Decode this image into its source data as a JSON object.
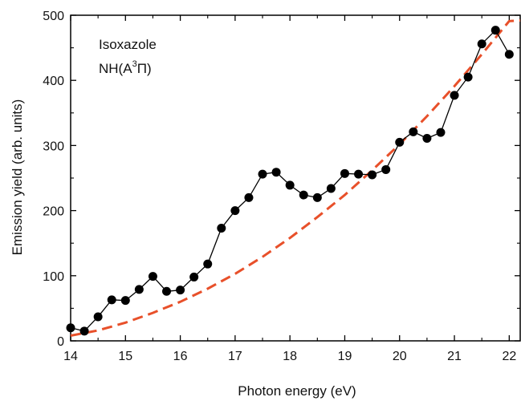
{
  "chart_data": {
    "type": "line",
    "xlabel": "Photon energy (eV)",
    "ylabel": "Emission yield (arb. units)",
    "xlim": [
      14,
      22.2
    ],
    "ylim": [
      0,
      500
    ],
    "xticks": [
      "14",
      "15",
      "16",
      "17",
      "18",
      "19",
      "20",
      "21",
      "22"
    ],
    "yticks": [
      "0",
      "100",
      "200",
      "300",
      "400",
      "500"
    ],
    "grid": false,
    "annotations": {
      "molecule": "Isoxazole",
      "state_prefix": "NH(A",
      "state_superscript": "3",
      "state_suffix": "Π)"
    },
    "series": [
      {
        "type": "line-markers",
        "color": "#000000",
        "x": [
          14.0,
          14.25,
          14.5,
          14.75,
          15.0,
          15.25,
          15.5,
          15.75,
          16.0,
          16.25,
          16.5,
          16.75,
          17.0,
          17.25,
          17.5,
          17.75,
          18.0,
          18.25,
          18.5,
          18.75,
          19.0,
          19.25,
          19.5,
          19.75,
          20.0,
          20.25,
          20.5,
          20.75,
          21.0,
          21.25,
          21.5,
          21.75,
          22.0
        ],
        "values": [
          20,
          15,
          37,
          63,
          62,
          79,
          99,
          76,
          78,
          98,
          118,
          173,
          200,
          220,
          256,
          259,
          239,
          224,
          220,
          234,
          257,
          256,
          255,
          263,
          305,
          321,
          311,
          320,
          377,
          405,
          456,
          477,
          440
        ]
      },
      {
        "type": "dashed-fit",
        "color": "#e8502a",
        "x": [
          14.0,
          14.5,
          15.0,
          15.5,
          16.0,
          16.5,
          17.0,
          17.5,
          18.0,
          18.5,
          19.0,
          19.5,
          20.0,
          20.5,
          21.0,
          21.5,
          22.0,
          22.2
        ],
        "values": [
          8,
          16,
          28,
          43,
          60,
          80,
          103,
          129,
          158,
          190,
          224,
          262,
          302,
          345,
          391,
          440,
          491,
          492
        ]
      }
    ]
  }
}
